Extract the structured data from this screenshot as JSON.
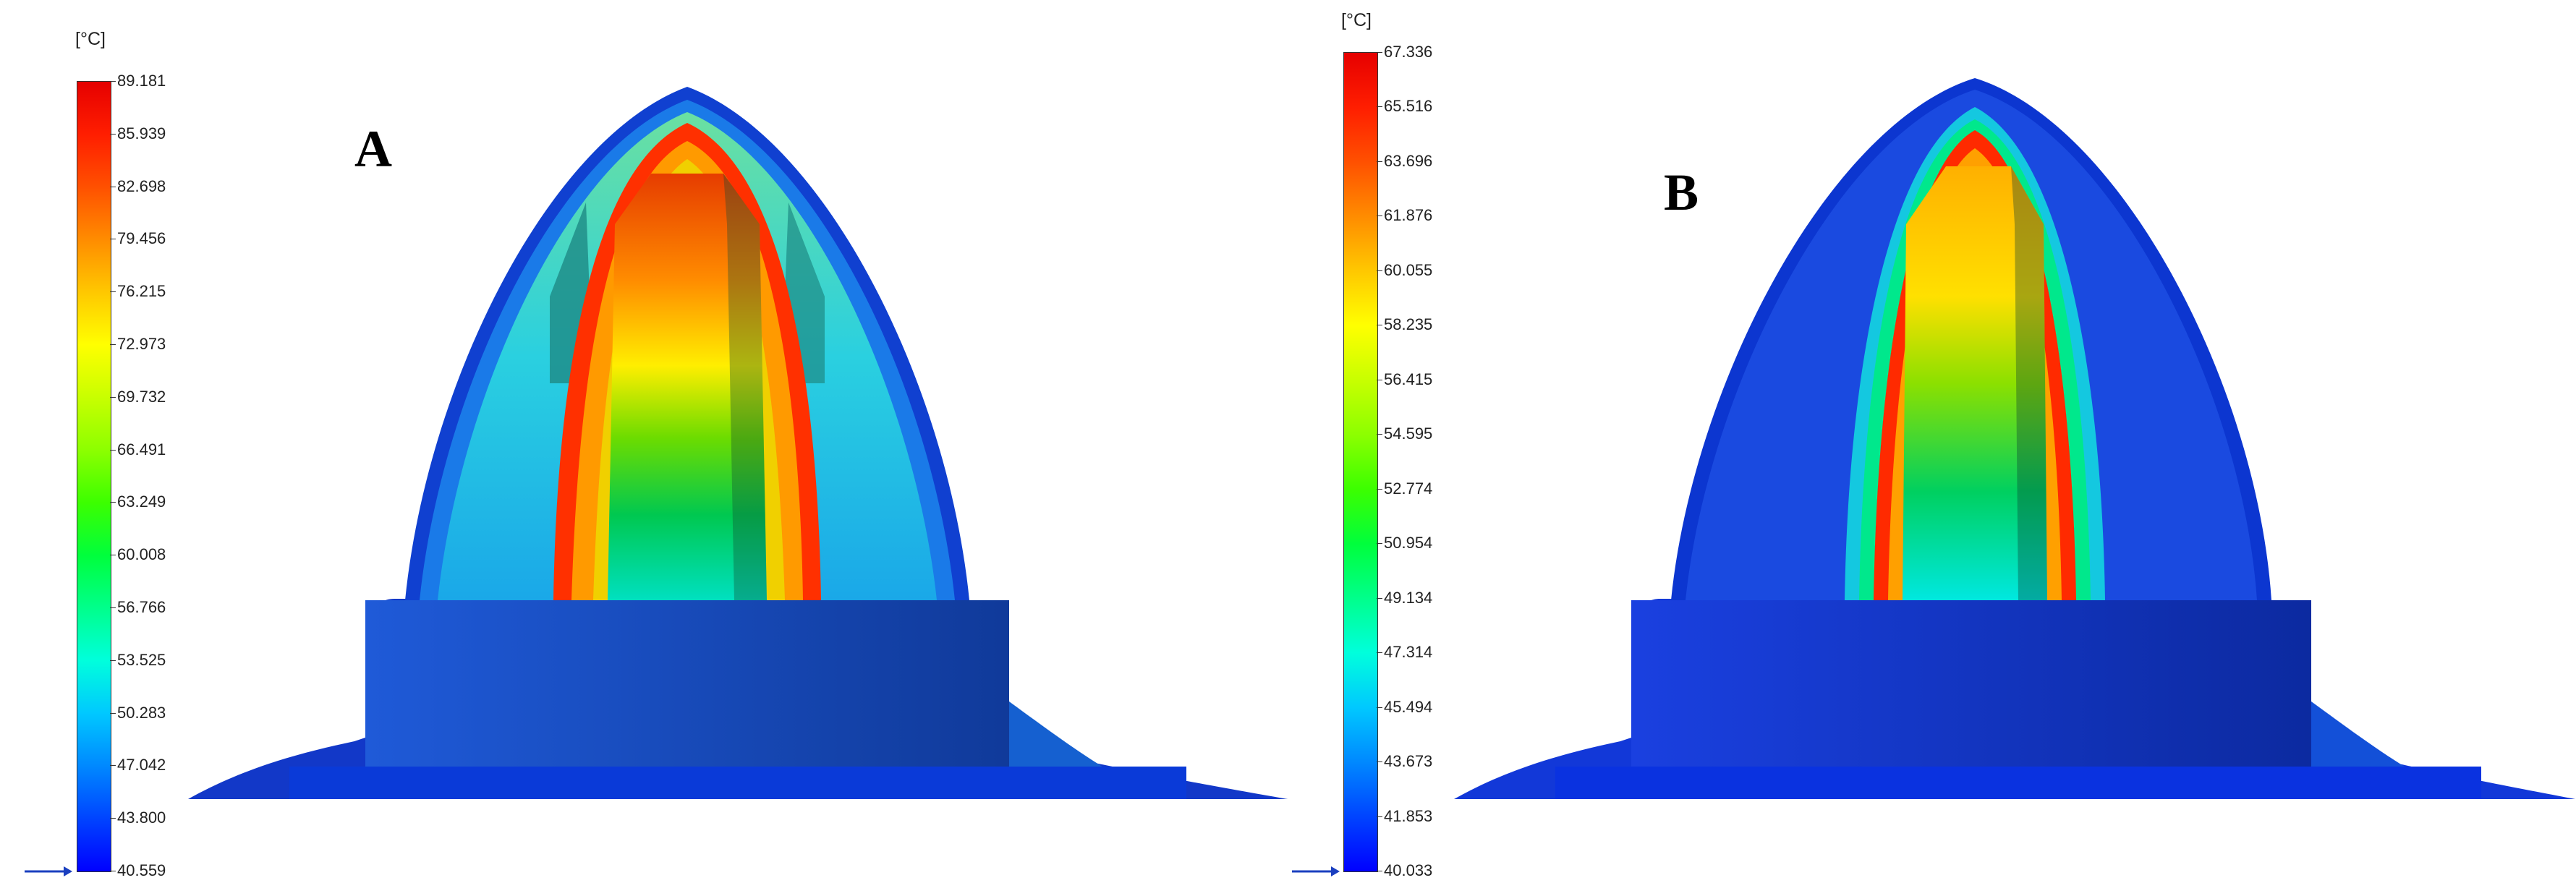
{
  "panels": [
    {
      "letter": "A",
      "unit": "[°C]",
      "ticks": [
        "89.181",
        "85.939",
        "82.698",
        "79.456",
        "76.215",
        "72.973",
        "69.732",
        "66.491",
        "63.249",
        "60.008",
        "56.766",
        "53.525",
        "50.283",
        "47.042",
        "43.800",
        "40.559"
      ]
    },
    {
      "letter": "B",
      "unit": "[°C]",
      "ticks": [
        "67.336",
        "65.516",
        "63.696",
        "61.876",
        "60.055",
        "58.235",
        "56.415",
        "54.595",
        "52.774",
        "50.954",
        "49.134",
        "47.314",
        "45.494",
        "43.673",
        "41.853",
        "40.033"
      ]
    }
  ],
  "colors": {
    "scale": [
      "#0000ff",
      "#0044ff",
      "#0088ff",
      "#00c8ff",
      "#00ffdc",
      "#00ff8c",
      "#00ff3c",
      "#3cff00",
      "#8cff00",
      "#c8ff00",
      "#ffff00",
      "#ffc800",
      "#ff8c00",
      "#ff5000",
      "#ff1e00",
      "#e60000"
    ]
  }
}
